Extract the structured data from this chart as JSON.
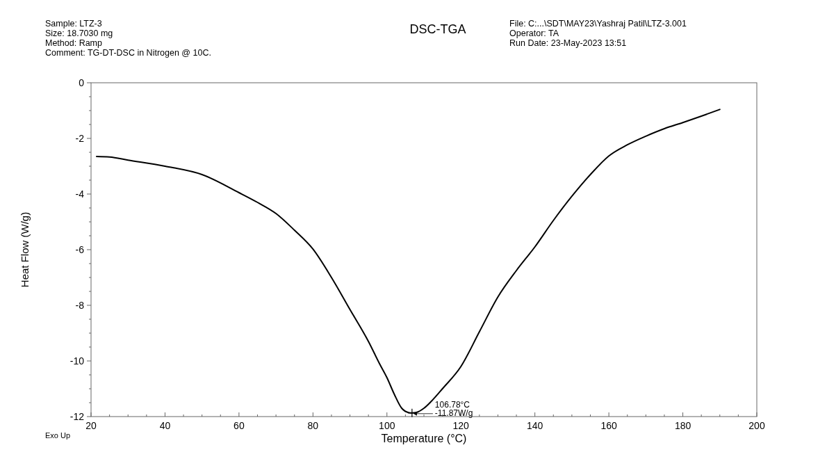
{
  "chart_data": {
    "type": "line",
    "title": "DSC-TGA",
    "xlabel": "Temperature (°C)",
    "ylabel": "Heat Flow (W/g)",
    "annotations": [
      "Sample: LTZ-3",
      "Size:  18.7030 mg",
      "Method: Ramp",
      "Comment: TG-DT-DSC in Nitrogen @ 10C.",
      "File: C:...\\SDT\\MAY23\\Yashraj Patil\\LTZ-3.001",
      "Operator: TA",
      "Run Date: 23-May-2023 13:51",
      "Exo Up",
      {
        "text": "106.78°C\n-11.87W/g",
        "x": 106.78,
        "y": -11.87
      }
    ],
    "x": [
      21.5,
      25,
      30,
      40,
      50,
      60,
      65,
      70,
      75,
      80,
      85,
      90,
      95,
      98,
      100,
      102,
      104,
      106,
      106.78,
      108,
      110,
      112,
      115,
      120,
      125,
      130,
      135,
      140,
      145,
      150,
      155,
      160,
      165,
      170,
      175,
      180,
      185,
      190
    ],
    "series": [
      {
        "color": "#000000",
        "values": [
          -2.65,
          -2.67,
          -2.78,
          -3.0,
          -3.3,
          -3.95,
          -4.3,
          -4.7,
          -5.3,
          -5.98,
          -7.0,
          -8.15,
          -9.3,
          -10.1,
          -10.6,
          -11.2,
          -11.7,
          -11.86,
          -11.87,
          -11.85,
          -11.7,
          -11.45,
          -11.0,
          -10.2,
          -8.95,
          -7.7,
          -6.75,
          -5.9,
          -4.95,
          -4.08,
          -3.3,
          -2.63,
          -2.23,
          -1.92,
          -1.65,
          -1.43,
          -1.2,
          -0.96
        ]
      }
    ],
    "xlim": [
      20,
      200
    ],
    "ylim": [
      -12,
      0
    ],
    "xticks": [
      20,
      {
        "value": 25,
        "label": null
      },
      {
        "value": 30,
        "label": null
      },
      {
        "value": 35,
        "label": null
      },
      40,
      {
        "value": 45,
        "label": null
      },
      {
        "value": 50,
        "label": null
      },
      {
        "value": 55,
        "label": null
      },
      60,
      {
        "value": 65,
        "label": null
      },
      {
        "value": 70,
        "label": null
      },
      {
        "value": 75,
        "label": null
      },
      80,
      {
        "value": 85,
        "label": null
      },
      {
        "value": 90,
        "label": null
      },
      {
        "value": 95,
        "label": null
      },
      100,
      {
        "value": 105,
        "label": null
      },
      {
        "value": 110,
        "label": null
      },
      {
        "value": 115,
        "label": null
      },
      120,
      {
        "value": 125,
        "label": null
      },
      {
        "value": 130,
        "label": null
      },
      {
        "value": 135,
        "label": null
      },
      140,
      {
        "value": 145,
        "label": null
      },
      {
        "value": 150,
        "label": null
      },
      {
        "value": 155,
        "label": null
      },
      160,
      {
        "value": 165,
        "label": null
      },
      {
        "value": 170,
        "label": null
      },
      {
        "value": 175,
        "label": null
      },
      180,
      {
        "value": 185,
        "label": null
      },
      {
        "value": 190,
        "label": null
      },
      {
        "value": 195,
        "label": null
      },
      200
    ],
    "yticks": [
      -12,
      {
        "value": -11.5,
        "label": null
      },
      {
        "value": -11,
        "label": null
      },
      {
        "value": -10.5,
        "label": null
      },
      -10,
      {
        "value": -9.5,
        "label": null
      },
      {
        "value": -9,
        "label": null
      },
      {
        "value": -8.5,
        "label": null
      },
      -8,
      {
        "value": -7.5,
        "label": null
      },
      {
        "value": -7,
        "label": null
      },
      {
        "value": -6.5,
        "label": null
      },
      -6,
      {
        "value": -5.5,
        "label": null
      },
      {
        "value": -5,
        "label": null
      },
      {
        "value": -4.5,
        "label": null
      },
      -4,
      {
        "value": -3.5,
        "label": null
      },
      {
        "value": -3,
        "label": null
      },
      {
        "value": -2.5,
        "label": null
      },
      -2,
      {
        "value": -1.5,
        "label": null
      },
      {
        "value": -1,
        "label": null
      },
      {
        "value": -0.5,
        "label": null
      },
      0
    ],
    "grid": false,
    "marker": "none",
    "line_style": "solid"
  }
}
